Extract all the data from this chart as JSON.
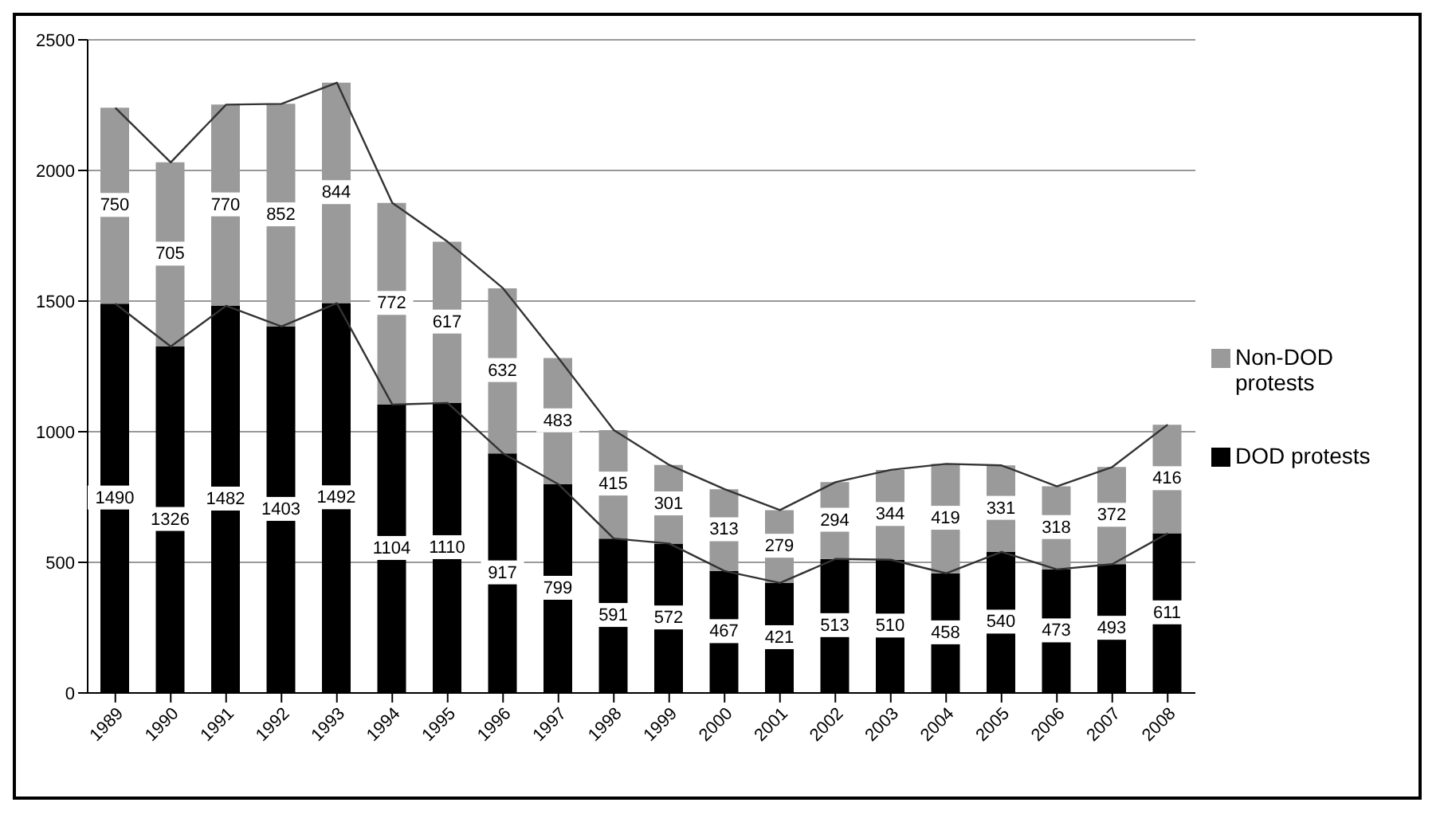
{
  "chart_data": {
    "type": "bar",
    "stacked": true,
    "categories": [
      "1989",
      "1990",
      "1991",
      "1992",
      "1993",
      "1994",
      "1995",
      "1996",
      "1997",
      "1998",
      "1999",
      "2000",
      "2001",
      "2002",
      "2003",
      "2004",
      "2005",
      "2006",
      "2007",
      "2008"
    ],
    "series": [
      {
        "name": "DOD protests",
        "color": "#000000",
        "values": [
          1490,
          1326,
          1482,
          1403,
          1492,
          1104,
          1110,
          917,
          799,
          591,
          572,
          467,
          421,
          513,
          510,
          458,
          540,
          473,
          493,
          611
        ],
        "value_labels": [
          "1490",
          "1326",
          "1482",
          "1403",
          "1492",
          "1104",
          "1110",
          "917",
          "799",
          "591",
          "572",
          "467",
          "421",
          "513",
          "510",
          "458",
          "540",
          "473",
          "493",
          "611"
        ]
      },
      {
        "name": "Non-DOD protests",
        "color": "#9a9a9a",
        "values": [
          750,
          705,
          770,
          852,
          844,
          772,
          617,
          632,
          483,
          415,
          301,
          313,
          279,
          294,
          344,
          419,
          331,
          318,
          372,
          416
        ],
        "value_labels": [
          "750",
          "705",
          "770",
          "852",
          "844",
          "772",
          "617",
          "632",
          "483",
          "415",
          "301",
          "313",
          "279",
          "294",
          "344",
          "419",
          "331",
          "318",
          "372",
          "416"
        ]
      },
      {
        "type": "line",
        "color": "#333333",
        "values": [
          1490,
          1326,
          1482,
          1403,
          1492,
          1104,
          1110,
          917,
          799,
          591,
          572,
          467,
          421,
          513,
          510,
          458,
          540,
          473,
          493,
          611
        ]
      },
      {
        "type": "line",
        "color": "#333333",
        "values": [
          2240,
          2031,
          2252,
          2255,
          2336,
          1876,
          1727,
          1549,
          1282,
          1006,
          873,
          780,
          700,
          807,
          854,
          877,
          871,
          791,
          865,
          1027
        ]
      }
    ],
    "ylim": [
      0,
      2500
    ],
    "yticks": [
      0,
      500,
      1000,
      1500,
      2000,
      2500
    ],
    "grid": "y",
    "legend": "right",
    "marker": "none",
    "line_style": "solid"
  }
}
